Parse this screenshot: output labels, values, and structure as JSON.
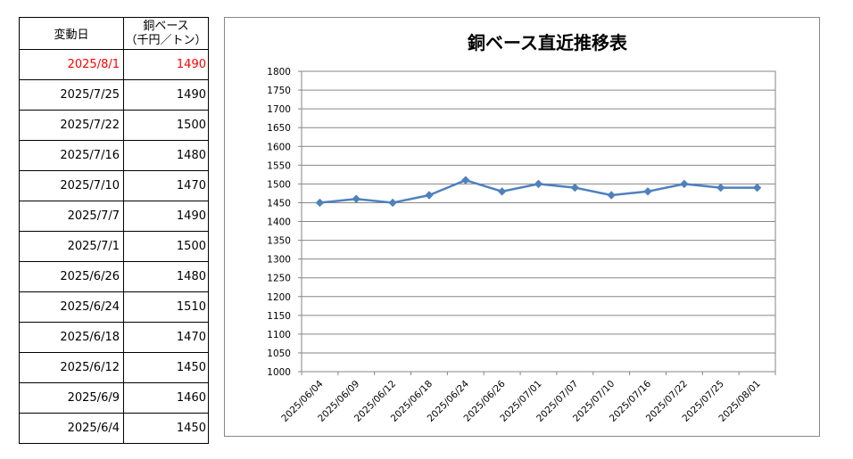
{
  "table": {
    "header": {
      "date": "変動日",
      "price_line1": "銅ベース",
      "price_line2": "（千円／トン）"
    },
    "rows": [
      {
        "date": "2025/8/1",
        "value": "1490",
        "highlight": true
      },
      {
        "date": "2025/7/25",
        "value": "1490"
      },
      {
        "date": "2025/7/22",
        "value": "1500"
      },
      {
        "date": "2025/7/16",
        "value": "1480"
      },
      {
        "date": "2025/7/10",
        "value": "1470"
      },
      {
        "date": "2025/7/7",
        "value": "1490"
      },
      {
        "date": "2025/7/1",
        "value": "1500"
      },
      {
        "date": "2025/6/26",
        "value": "1480"
      },
      {
        "date": "2025/6/24",
        "value": "1510"
      },
      {
        "date": "2025/6/18",
        "value": "1470"
      },
      {
        "date": "2025/6/12",
        "value": "1450"
      },
      {
        "date": "2025/6/9",
        "value": "1460"
      },
      {
        "date": "2025/6/4",
        "value": "1450"
      }
    ],
    "highlight_color": "#ff0000"
  },
  "chart_data": {
    "type": "line",
    "title": "銅ベース直近推移表",
    "categories": [
      "2025/06/04",
      "2025/06/09",
      "2025/06/12",
      "2025/06/18",
      "2025/06/24",
      "2025/06/26",
      "2025/07/01",
      "2025/07/07",
      "2025/07/10",
      "2025/07/16",
      "2025/07/22",
      "2025/07/25",
      "2025/08/01"
    ],
    "series": [
      {
        "values": [
          1450,
          1460,
          1450,
          1470,
          1510,
          1480,
          1500,
          1490,
          1470,
          1480,
          1500,
          1490,
          1490
        ],
        "color": "#4f81bd"
      }
    ],
    "ylim": [
      1000,
      1800
    ],
    "yticks": [
      "1000",
      "1050",
      "1100",
      "1150",
      "1200",
      "1250",
      "1300",
      "1350",
      "1400",
      "1450",
      "1500",
      "1550",
      "1600",
      "1650",
      "1700",
      "1750",
      "1800"
    ],
    "grid": true,
    "legend": "none"
  }
}
